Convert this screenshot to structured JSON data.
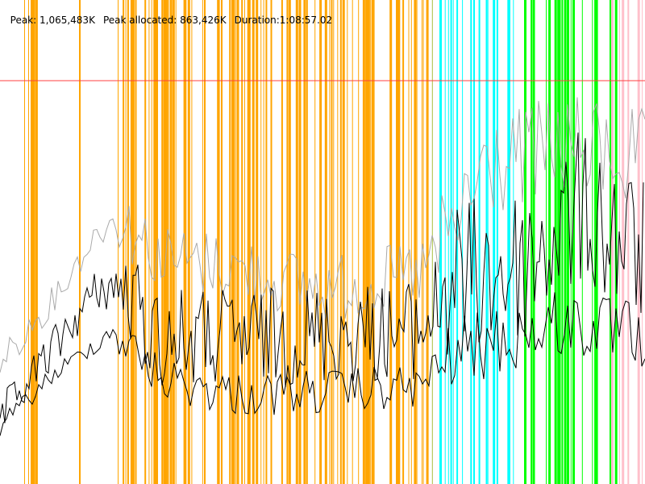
{
  "header": {
    "peak": "Peak: 1,065,483K",
    "peak_allocated": "Peak allocated: 863,426K",
    "duration": "Duration:1:08:57.02"
  }
}
